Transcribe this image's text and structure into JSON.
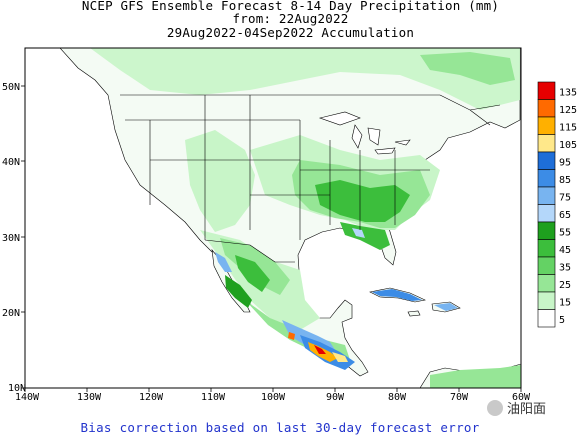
{
  "title": {
    "line1": "NCEP GFS Ensemble Forecast 8-14 Day Precipitation (mm)",
    "line2": "from: 22Aug2022",
    "line3": "29Aug2022-04Sep2022 Accumulation"
  },
  "axes": {
    "lon_labels": [
      "140W",
      "130W",
      "120W",
      "110W",
      "100W",
      "90W",
      "80W",
      "70W",
      "60W"
    ],
    "lat_labels": [
      "10N",
      "20N",
      "30N",
      "40N",
      "50N"
    ]
  },
  "legend": {
    "levels": [
      "135",
      "125",
      "115",
      "105",
      "95",
      "85",
      "75",
      "65",
      "55",
      "45",
      "35",
      "25",
      "15",
      "5"
    ],
    "colors": [
      "#e60000",
      "#ff6a00",
      "#ffb000",
      "#ffe88a",
      "#1e6ed8",
      "#3c8ce6",
      "#78b4f0",
      "#b4d7fa",
      "#1ea01e",
      "#3cbe3c",
      "#64d264",
      "#96e696",
      "#c8f5c8",
      "#ffffff"
    ]
  },
  "footer": "Bias correction based on last 30-day forecast error",
  "watermark": "油阳面"
}
